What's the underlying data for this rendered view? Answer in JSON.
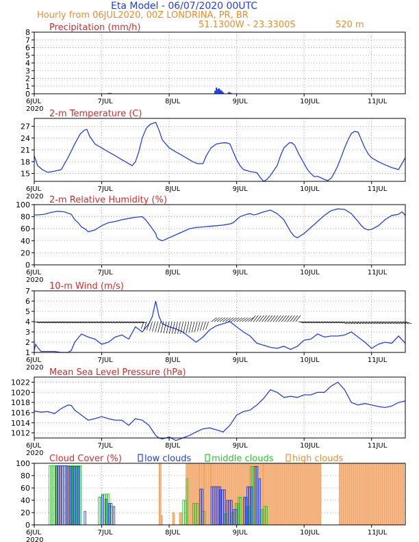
{
  "header": {
    "title": "Eta Model - 06/07/2020 00UTC",
    "subtitle": "Hourly from 06JUL2020, 00Z  LONDRINA, PR, BR",
    "coords": "51.1300W - 23.3300S",
    "elevation": "520  m"
  },
  "colors": {
    "title": "#1e3cff",
    "label": "#e02828",
    "line": "#1e3cff",
    "orange": "#f08c28",
    "low": "#1e3cff",
    "middle": "#22cc22",
    "high": "#f08c28",
    "wind": "#000000",
    "grid": "#aaaaaa"
  },
  "chart_data": [
    {
      "id": "precip",
      "type": "bar",
      "title": "Precipitation (mm/h)",
      "x": [
        1.1,
        1.12,
        1.14,
        2.68,
        2.7,
        2.72,
        2.74,
        2.76,
        2.78,
        2.8,
        2.88,
        2.9,
        2.92
      ],
      "values": [
        0.1,
        0.1,
        0.1,
        0.4,
        0.8,
        0.6,
        0.7,
        0.5,
        0.4,
        0.2,
        0.2,
        0.2,
        0.1
      ],
      "ylim": [
        0,
        8
      ],
      "yticks": [
        0,
        1,
        2,
        3,
        4,
        5,
        6,
        7,
        8
      ]
    },
    {
      "id": "temp",
      "type": "line",
      "title": "2-m Temperature (C)",
      "x": [
        0,
        0.05,
        0.12,
        0.2,
        0.3,
        0.4,
        0.5,
        0.6,
        0.68,
        0.74,
        0.78,
        0.82,
        0.9,
        1.0,
        1.1,
        1.2,
        1.3,
        1.4,
        1.45,
        1.5,
        1.55,
        1.6,
        1.66,
        1.72,
        1.8,
        1.85,
        1.9,
        2.0,
        2.1,
        2.2,
        2.3,
        2.35,
        2.42,
        2.5,
        2.55,
        2.62,
        2.7,
        2.8,
        2.85,
        2.9,
        2.95,
        3.0,
        3.05,
        3.1,
        3.2,
        3.3,
        3.35,
        3.4,
        3.45,
        3.5,
        3.6,
        3.65,
        3.7,
        3.78,
        3.82,
        3.86,
        3.92,
        4.0,
        4.05,
        4.1,
        4.15,
        4.2,
        4.3,
        4.35,
        4.4,
        4.45,
        4.5,
        4.55,
        4.6,
        4.65,
        4.7,
        4.75,
        4.8,
        4.85,
        4.9,
        4.95,
        5.0,
        5.05,
        5.1,
        5.2,
        5.3,
        5.4,
        5.5
      ],
      "values": [
        19.5,
        17,
        16,
        15.3,
        15.6,
        16,
        19,
        22.5,
        25,
        26,
        26.2,
        24.5,
        22.5,
        21.5,
        20.5,
        19.5,
        18.5,
        17.5,
        17,
        18,
        20.5,
        24,
        26.5,
        27.5,
        28,
        26,
        23.5,
        21.5,
        20.5,
        19.5,
        18.5,
        18,
        17.5,
        17.5,
        19.5,
        21.5,
        22.5,
        22.8,
        22.8,
        22.5,
        20.5,
        18.5,
        17,
        16,
        15.5,
        15.2,
        14,
        13,
        13.5,
        14.5,
        17,
        19.5,
        21.5,
        22.8,
        22.8,
        22.2,
        20,
        17.5,
        16,
        15,
        14.2,
        14.3,
        13.5,
        13.2,
        13.8,
        15.2,
        17,
        19.2,
        21.5,
        23.5,
        25.2,
        25.7,
        25.5,
        23.5,
        21.5,
        20,
        19,
        18.5,
        18,
        17.2,
        16.5,
        16,
        19
      ],
      "ylim": [
        13,
        29
      ],
      "yticks": [
        15,
        18,
        21,
        24,
        27
      ]
    },
    {
      "id": "rh",
      "type": "line",
      "title": "2-m Relative Humidity (%)",
      "x": [
        0,
        0.05,
        0.15,
        0.25,
        0.35,
        0.45,
        0.55,
        0.6,
        0.65,
        0.7,
        0.75,
        0.8,
        0.9,
        1.0,
        1.1,
        1.2,
        1.3,
        1.4,
        1.5,
        1.6,
        1.65,
        1.7,
        1.75,
        1.8,
        1.82,
        1.85,
        1.9,
        2.0,
        2.1,
        2.2,
        2.3,
        2.4,
        2.5,
        2.6,
        2.7,
        2.8,
        2.9,
        2.95,
        3.0,
        3.05,
        3.1,
        3.15,
        3.2,
        3.25,
        3.3,
        3.35,
        3.4,
        3.5,
        3.6,
        3.7,
        3.75,
        3.8,
        3.85,
        3.9,
        4.0,
        4.1,
        4.2,
        4.3,
        4.4,
        4.5,
        4.6,
        4.7,
        4.8,
        4.85,
        4.9,
        4.95,
        5.0,
        5.1,
        5.2,
        5.3,
        5.4,
        5.45,
        5.5
      ],
      "values": [
        83,
        83,
        84,
        87,
        89,
        88,
        84,
        75,
        70,
        63,
        60,
        55,
        58,
        65,
        70,
        72,
        75,
        77,
        79,
        80,
        75,
        68,
        60,
        52,
        45,
        42,
        40,
        45,
        50,
        55,
        60,
        62,
        63,
        64,
        65,
        66,
        68,
        70,
        75,
        80,
        82,
        84,
        85,
        83,
        84,
        86,
        88,
        91,
        85,
        75,
        65,
        55,
        48,
        45,
        52,
        62,
        72,
        82,
        90,
        93,
        92,
        85,
        72,
        65,
        60,
        58,
        59,
        65,
        75,
        82,
        84,
        88,
        82
      ],
      "ylim": [
        0,
        100
      ],
      "yticks": [
        0,
        20,
        40,
        60,
        80,
        100
      ]
    },
    {
      "id": "wind",
      "type": "line",
      "title": "10-m Wind (m/s)",
      "x": [
        0,
        0.02,
        0.05,
        0.1,
        0.2,
        0.3,
        0.4,
        0.5,
        0.55,
        0.6,
        0.7,
        0.8,
        0.9,
        1.0,
        1.1,
        1.2,
        1.3,
        1.4,
        1.5,
        1.6,
        1.7,
        1.75,
        1.8,
        1.85,
        1.9,
        2.0,
        2.1,
        2.2,
        2.3,
        2.4,
        2.5,
        2.6,
        2.7,
        2.8,
        2.9,
        3.0,
        3.1,
        3.2,
        3.3,
        3.4,
        3.5,
        3.6,
        3.7,
        3.8,
        3.9,
        4.0,
        4.1,
        4.2,
        4.3,
        4.4,
        4.5,
        4.6,
        4.7,
        4.8,
        4.9,
        5.0,
        5.1,
        5.2,
        5.3,
        5.4,
        5.5
      ],
      "values": [
        1.2,
        1.8,
        1.5,
        1.1,
        1.1,
        1.1,
        1.0,
        1.0,
        1.2,
        2.0,
        2.8,
        2.5,
        2.3,
        1.8,
        2.0,
        2.5,
        2.7,
        2.3,
        3.5,
        3.0,
        3.8,
        4.5,
        6.0,
        4.5,
        3.8,
        3.5,
        3.3,
        3.0,
        2.5,
        2.0,
        2.5,
        3.2,
        3.6,
        3.8,
        4.0,
        3.5,
        3.0,
        2.6,
        1.9,
        1.7,
        1.5,
        1.4,
        1.6,
        1.3,
        1.6,
        2.2,
        2.3,
        2.8,
        2.5,
        2.6,
        2.6,
        2.7,
        3.0,
        2.5,
        2.0,
        1.4,
        1.8,
        2.0,
        1.9,
        2.6,
        1.9
      ],
      "ylim": [
        1,
        7
      ],
      "yticks": [
        1,
        2,
        3,
        4,
        5,
        6,
        7
      ]
    },
    {
      "id": "mslp",
      "type": "line",
      "title": "Mean Sea Level Pressure (hPa)",
      "x": [
        0,
        0.1,
        0.2,
        0.3,
        0.4,
        0.5,
        0.55,
        0.6,
        0.7,
        0.8,
        0.9,
        1.0,
        1.1,
        1.2,
        1.3,
        1.4,
        1.5,
        1.6,
        1.7,
        1.75,
        1.8,
        1.85,
        1.9,
        2.0,
        2.1,
        2.2,
        2.3,
        2.4,
        2.5,
        2.6,
        2.7,
        2.8,
        2.9,
        3.0,
        3.1,
        3.2,
        3.3,
        3.4,
        3.5,
        3.6,
        3.7,
        3.8,
        3.9,
        4.0,
        4.1,
        4.2,
        4.3,
        4.4,
        4.5,
        4.6,
        4.7,
        4.8,
        4.9,
        5.0,
        5.1,
        5.2,
        5.3,
        5.4,
        5.5
      ],
      "values": [
        1016.3,
        1016.1,
        1016.2,
        1015.8,
        1016.8,
        1017.5,
        1017.4,
        1016.5,
        1015.5,
        1014.5,
        1014.8,
        1015.2,
        1014.8,
        1014.5,
        1014.5,
        1013.5,
        1014.8,
        1014.5,
        1013.5,
        1012.5,
        1011.5,
        1011.0,
        1010.8,
        1011.2,
        1010.5,
        1011.0,
        1011.5,
        1012.2,
        1012.8,
        1013.0,
        1012.6,
        1012.2,
        1013.5,
        1015.5,
        1016.2,
        1016.5,
        1017.5,
        1018.8,
        1020.5,
        1020.0,
        1019.0,
        1019.2,
        1019.0,
        1019.5,
        1019.5,
        1020.0,
        1020.0,
        1021.2,
        1022.0,
        1020.5,
        1018.0,
        1017.5,
        1017.8,
        1017.5,
        1017.2,
        1017.0,
        1017.3,
        1018.0,
        1018.3
      ],
      "ylim": [
        1011,
        1023
      ],
      "yticks": [
        1012,
        1014,
        1016,
        1018,
        1020,
        1022
      ]
    },
    {
      "id": "cloud",
      "type": "bar",
      "title": "Cloud Cover (%)",
      "legend": [
        "low clouds",
        "middle clouds",
        "high clouds"
      ],
      "ylim": [
        0,
        100
      ],
      "yticks": [
        0,
        20,
        40,
        60,
        80,
        100
      ],
      "series": [
        {
          "name": "low clouds",
          "ranges": [
            [
              0.32,
              0.5,
              96
            ],
            [
              0.5,
              0.68,
              95
            ],
            [
              0.74,
              0.77,
              22
            ],
            [
              1.0,
              1.02,
              48
            ],
            [
              1.05,
              1.08,
              42
            ],
            [
              1.1,
              1.16,
              35
            ],
            [
              1.17,
              1.2,
              30
            ],
            [
              2.45,
              2.5,
              58
            ],
            [
              2.62,
              2.75,
              62
            ],
            [
              2.75,
              2.82,
              57
            ],
            [
              2.85,
              2.92,
              40
            ],
            [
              2.95,
              3.0,
              25
            ],
            [
              3.1,
              3.15,
              45
            ],
            [
              3.15,
              3.22,
              62
            ],
            [
              3.26,
              3.32,
              95
            ],
            [
              3.33,
              3.36,
              75
            ]
          ]
        },
        {
          "name": "middle clouds",
          "ranges": [
            [
              0.22,
              0.32,
              96
            ],
            [
              0.32,
              0.55,
              96
            ],
            [
              0.55,
              0.68,
              96
            ],
            [
              0.95,
              1.0,
              45
            ],
            [
              1.0,
              1.1,
              50
            ],
            [
              1.1,
              1.15,
              30
            ],
            [
              2.2,
              2.25,
              40
            ],
            [
              2.25,
              2.28,
              75
            ],
            [
              2.35,
              2.42,
              35
            ],
            [
              2.48,
              2.52,
              22
            ],
            [
              2.82,
              2.88,
              18
            ],
            [
              2.92,
              2.96,
              20
            ],
            [
              2.98,
              3.02,
              35
            ],
            [
              3.02,
              3.06,
              45
            ],
            [
              3.1,
              3.14,
              42
            ],
            [
              3.14,
              3.18,
              30
            ],
            [
              3.2,
              3.28,
              95
            ],
            [
              3.29,
              3.32,
              95
            ],
            [
              3.35,
              3.4,
              25
            ],
            [
              3.4,
              3.45,
              30
            ]
          ]
        },
        {
          "name": "high clouds",
          "ranges": [
            [
              0.32,
              0.4,
              95
            ],
            [
              0.48,
              0.58,
              95
            ],
            [
              1.85,
              1.88,
              100
            ],
            [
              1.88,
              1.9,
              15
            ],
            [
              2.05,
              2.08,
              20
            ],
            [
              2.15,
              2.2,
              20
            ],
            [
              2.25,
              2.45,
              100
            ],
            [
              2.45,
              2.52,
              100
            ],
            [
              2.52,
              2.62,
              100
            ],
            [
              2.62,
              3.4,
              100
            ],
            [
              3.4,
              4.25,
              100
            ],
            [
              4.52,
              5.48,
              100
            ]
          ]
        }
      ]
    }
  ],
  "x_axis": {
    "ticks": [
      {
        "x": 0,
        "label": "6JUL",
        "year": "2020"
      },
      {
        "x": 1,
        "label": "7JUL"
      },
      {
        "x": 2,
        "label": "8JUL"
      },
      {
        "x": 3,
        "label": "9JUL"
      },
      {
        "x": 4,
        "label": "10JUL"
      },
      {
        "x": 5,
        "label": "11JUL"
      }
    ],
    "xlim": [
      0,
      5.5
    ]
  }
}
